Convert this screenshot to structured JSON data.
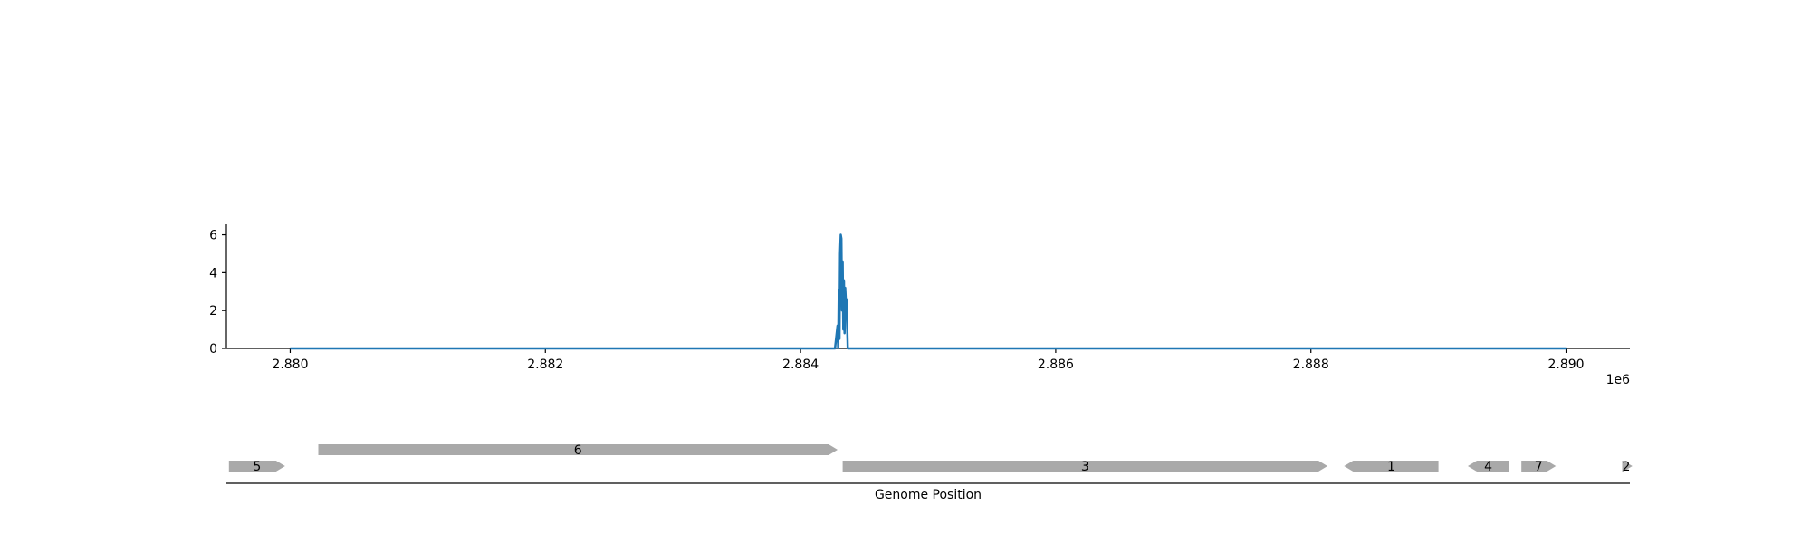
{
  "chart_data": [
    {
      "type": "line",
      "title": "",
      "xlabel": "",
      "ylabel": "",
      "x_offset_label": "1e6",
      "xlim": [
        2879500,
        2890500
      ],
      "ylim": [
        0,
        6.6
      ],
      "x_ticks": [
        2880000,
        2882000,
        2884000,
        2886000,
        2888000,
        2890000
      ],
      "x_tick_labels": [
        "2.880",
        "2.882",
        "2.884",
        "2.886",
        "2.888",
        "2.890"
      ],
      "y_ticks": [
        0,
        2,
        4,
        6
      ],
      "y_tick_labels": [
        "0",
        "2",
        "4",
        "6"
      ],
      "grid": false,
      "color": "#1f77b4",
      "series": [
        {
          "x": [
            2880000,
            2884270,
            2884290,
            2884295,
            2884300,
            2884305,
            2884310,
            2884315,
            2884320,
            2884325,
            2884330,
            2884335,
            2884340,
            2884345,
            2884350,
            2884355,
            2884360,
            2884370,
            2884380,
            2890000
          ],
          "y": [
            0,
            0,
            1.2,
            0,
            3.1,
            0.5,
            5.0,
            6.0,
            5.8,
            2.0,
            4.6,
            1.0,
            3.6,
            0.8,
            3.2,
            2.5,
            2.6,
            0,
            0,
            0
          ]
        }
      ]
    },
    {
      "type": "gene-track",
      "xlabel": "Genome Position",
      "genes": [
        {
          "label": "5",
          "start": 2879520,
          "end": 2879960,
          "strand": "+",
          "row": 0
        },
        {
          "label": "6",
          "start": 2880220,
          "end": 2884290,
          "strand": "+",
          "row": 1
        },
        {
          "label": "3",
          "start": 2884330,
          "end": 2888130,
          "strand": "+",
          "row": 0
        },
        {
          "label": "1",
          "start": 2888260,
          "end": 2889000,
          "strand": "-",
          "row": 0
        },
        {
          "label": "4",
          "start": 2889230,
          "end": 2889550,
          "strand": "-",
          "row": 0
        },
        {
          "label": "7",
          "start": 2889650,
          "end": 2889920,
          "strand": "+",
          "row": 0
        },
        {
          "label": "2",
          "start": 2890440,
          "end": 2890520,
          "strand": "+",
          "row": 0
        }
      ]
    }
  ]
}
